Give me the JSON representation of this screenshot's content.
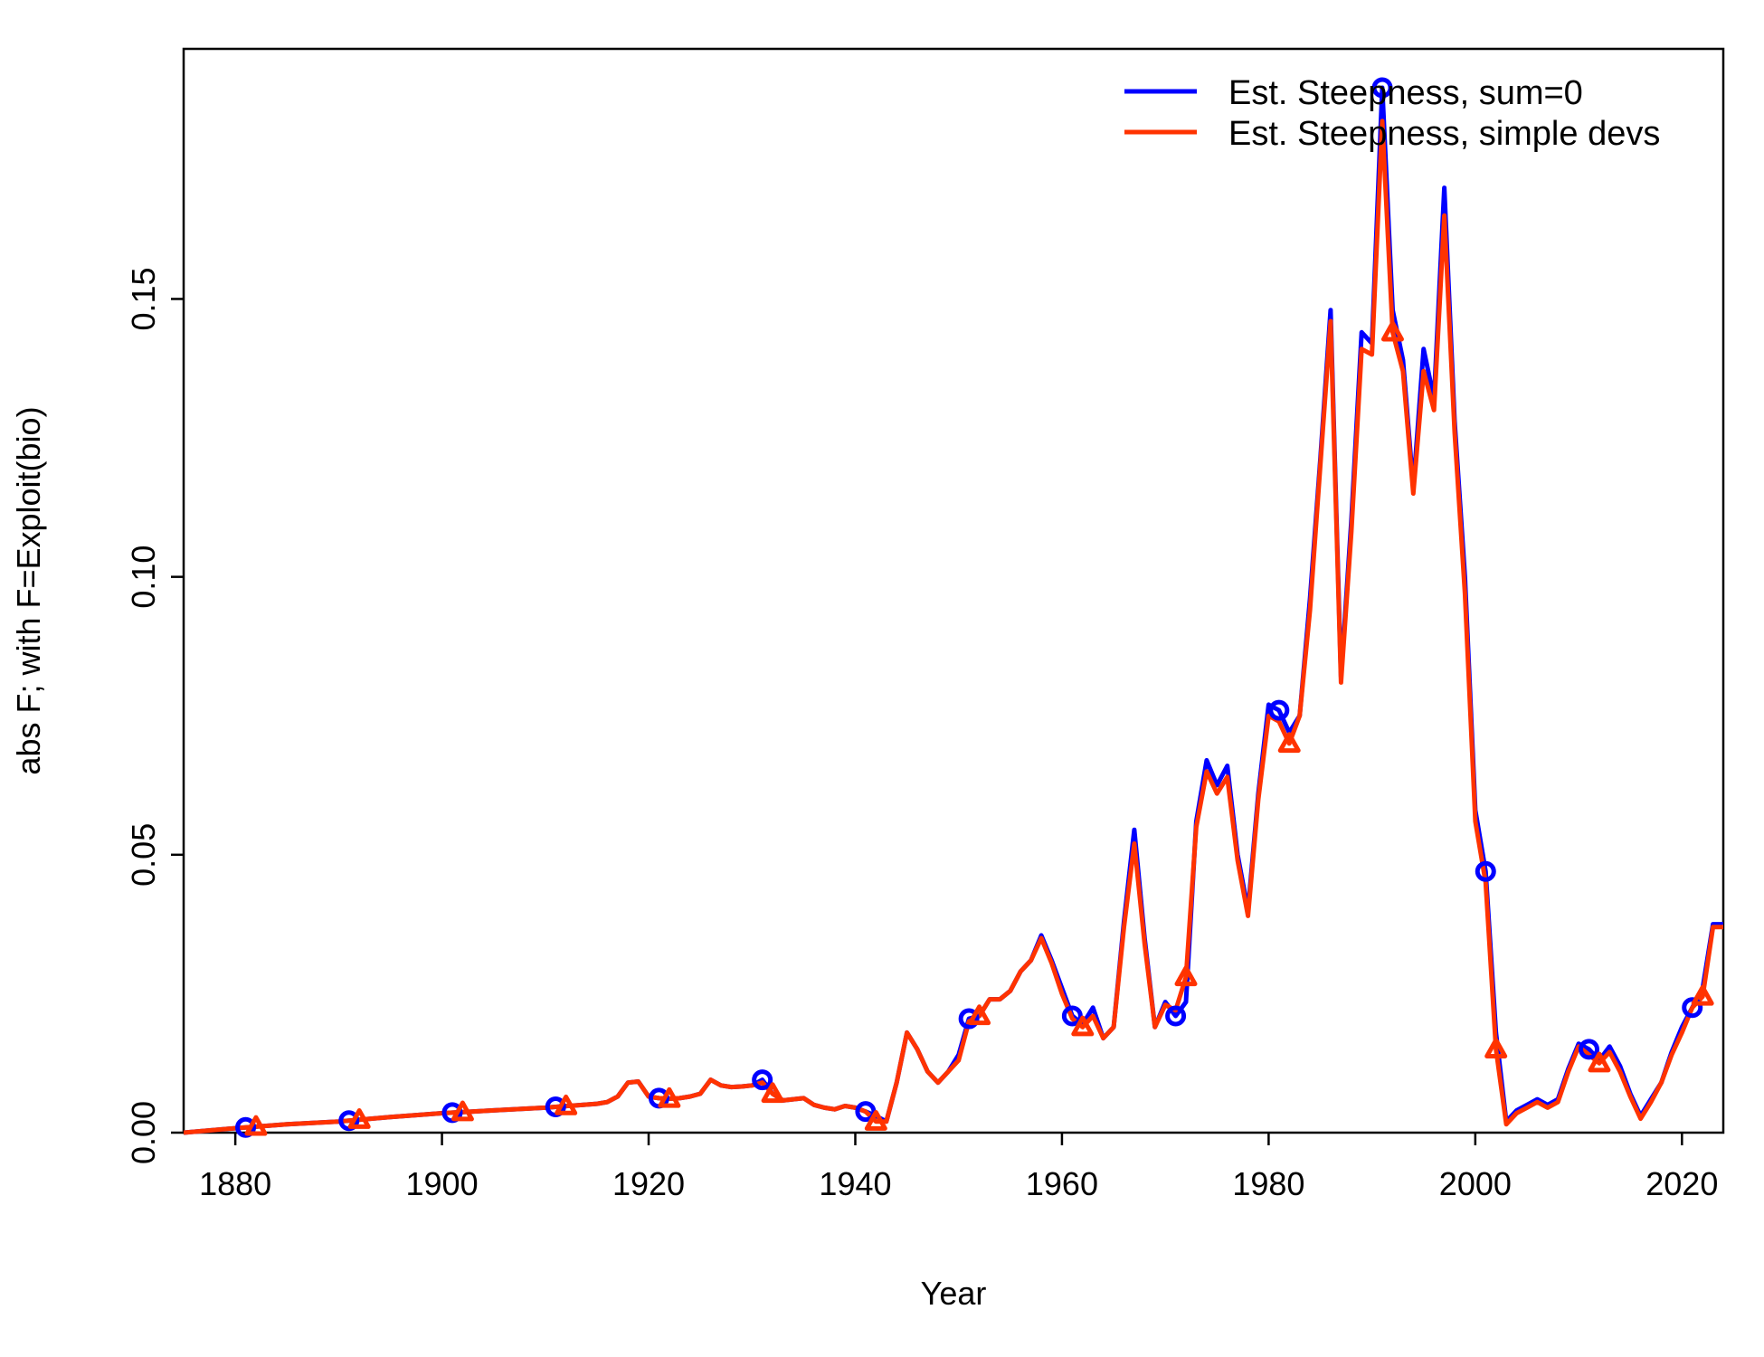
{
  "chart_data": {
    "type": "line",
    "title": "",
    "xlabel": "Year",
    "ylabel": "abs F; with F=Exploit(bio)",
    "xlim": [
      1875,
      2024
    ],
    "ylim": [
      0,
      0.195
    ],
    "x_ticks": [
      1880,
      1900,
      1920,
      1940,
      1960,
      1980,
      2000,
      2020
    ],
    "x_tick_labels": [
      "1880",
      "1900",
      "1920",
      "1940",
      "1960",
      "1980",
      "2000",
      "2020"
    ],
    "y_ticks": [
      0,
      0.05,
      0.1,
      0.15
    ],
    "y_tick_labels": [
      "0.00",
      "0.05",
      "0.10",
      "0.15"
    ],
    "grid": false,
    "legend_position": "top-right",
    "series": [
      {
        "name": "Est. Steepness, sum=0",
        "color": "#0000ff",
        "marker": "circle",
        "marker_x": [
          1881,
          1891,
          1901,
          1911,
          1921,
          1931,
          1941,
          1951,
          1961,
          1971,
          1981,
          1991,
          2001,
          2011,
          2021
        ],
        "x": [
          1875,
          1880,
          1885,
          1890,
          1895,
          1900,
          1905,
          1910,
          1915,
          1916,
          1917,
          1918,
          1919,
          1920,
          1921,
          1922,
          1923,
          1924,
          1925,
          1926,
          1927,
          1928,
          1929,
          1930,
          1931,
          1932,
          1933,
          1934,
          1935,
          1936,
          1937,
          1938,
          1939,
          1940,
          1941,
          1942,
          1943,
          1944,
          1945,
          1946,
          1947,
          1948,
          1949,
          1950,
          1951,
          1952,
          1953,
          1954,
          1955,
          1956,
          1957,
          1958,
          1959,
          1960,
          1961,
          1962,
          1963,
          1964,
          1965,
          1966,
          1967,
          1968,
          1969,
          1970,
          1971,
          1972,
          1973,
          1974,
          1975,
          1976,
          1977,
          1978,
          1979,
          1980,
          1981,
          1982,
          1983,
          1984,
          1985,
          1986,
          1987,
          1988,
          1989,
          1990,
          1991,
          1992,
          1993,
          1994,
          1995,
          1996,
          1997,
          1998,
          1999,
          2000,
          2001,
          2002,
          2003,
          2004,
          2005,
          2006,
          2007,
          2008,
          2009,
          2010,
          2011,
          2012,
          2013,
          2014,
          2015,
          2016,
          2017,
          2018,
          2019,
          2020,
          2021,
          2022,
          2023,
          2024
        ],
        "values": [
          0,
          0.0008,
          0.0015,
          0.002,
          0.0028,
          0.0035,
          0.004,
          0.0045,
          0.0052,
          0.0055,
          0.0065,
          0.009,
          0.0092,
          0.0065,
          0.0062,
          0.0061,
          0.0062,
          0.0065,
          0.007,
          0.0095,
          0.0085,
          0.0082,
          0.0083,
          0.0085,
          0.0095,
          0.007,
          0.0058,
          0.006,
          0.0062,
          0.005,
          0.0045,
          0.0042,
          0.0048,
          0.0045,
          0.0038,
          0.003,
          0.002,
          0.009,
          0.018,
          0.015,
          0.011,
          0.009,
          0.011,
          0.014,
          0.0205,
          0.021,
          0.024,
          0.024,
          0.0255,
          0.029,
          0.031,
          0.0355,
          0.031,
          0.026,
          0.021,
          0.0195,
          0.0225,
          0.017,
          0.019,
          0.038,
          0.0545,
          0.035,
          0.019,
          0.0235,
          0.021,
          0.0235,
          0.056,
          0.067,
          0.0625,
          0.066,
          0.05,
          0.04,
          0.061,
          0.077,
          0.076,
          0.072,
          0.075,
          0.096,
          0.121,
          0.148,
          0.082,
          0.11,
          0.144,
          0.142,
          0.188,
          0.148,
          0.139,
          0.116,
          0.141,
          0.132,
          0.17,
          0.128,
          0.1,
          0.058,
          0.047,
          0.018,
          0.002,
          0.004,
          0.005,
          0.006,
          0.005,
          0.006,
          0.0115,
          0.016,
          0.015,
          0.013,
          0.0155,
          0.012,
          0.007,
          0.003,
          0.006,
          0.009,
          0.0145,
          0.019,
          0.0225,
          0.026,
          0.0375,
          0.0375
        ]
      },
      {
        "name": "Est. Steepness, simple devs",
        "color": "#ff3300",
        "marker": "triangle",
        "marker_x": [
          1882,
          1892,
          1902,
          1912,
          1922,
          1932,
          1942,
          1952,
          1962,
          1972,
          1982,
          1992,
          2002,
          2012,
          2022
        ],
        "x": [
          1875,
          1880,
          1885,
          1890,
          1895,
          1900,
          1905,
          1910,
          1915,
          1916,
          1917,
          1918,
          1919,
          1920,
          1921,
          1922,
          1923,
          1924,
          1925,
          1926,
          1927,
          1928,
          1929,
          1930,
          1931,
          1932,
          1933,
          1934,
          1935,
          1936,
          1937,
          1938,
          1939,
          1940,
          1941,
          1942,
          1943,
          1944,
          1945,
          1946,
          1947,
          1948,
          1949,
          1950,
          1951,
          1952,
          1953,
          1954,
          1955,
          1956,
          1957,
          1958,
          1959,
          1960,
          1961,
          1962,
          1963,
          1964,
          1965,
          1966,
          1967,
          1968,
          1969,
          1970,
          1971,
          1972,
          1973,
          1974,
          1975,
          1976,
          1977,
          1978,
          1979,
          1980,
          1981,
          1982,
          1983,
          1984,
          1985,
          1986,
          1987,
          1988,
          1989,
          1990,
          1991,
          1992,
          1993,
          1994,
          1995,
          1996,
          1997,
          1998,
          1999,
          2000,
          2001,
          2002,
          2003,
          2004,
          2005,
          2006,
          2007,
          2008,
          2009,
          2010,
          2011,
          2012,
          2013,
          2014,
          2015,
          2016,
          2017,
          2018,
          2019,
          2020,
          2021,
          2022,
          2023,
          2024
        ],
        "values": [
          0,
          0.0008,
          0.0015,
          0.002,
          0.0028,
          0.0035,
          0.004,
          0.0045,
          0.0052,
          0.0055,
          0.0065,
          0.009,
          0.0092,
          0.0065,
          0.0062,
          0.0061,
          0.0062,
          0.0065,
          0.007,
          0.0095,
          0.0085,
          0.0082,
          0.0083,
          0.0085,
          0.009,
          0.007,
          0.0058,
          0.006,
          0.0062,
          0.005,
          0.0045,
          0.0042,
          0.0048,
          0.0045,
          0.0038,
          0.002,
          0.002,
          0.009,
          0.018,
          0.015,
          0.011,
          0.009,
          0.011,
          0.013,
          0.02,
          0.021,
          0.024,
          0.024,
          0.0255,
          0.029,
          0.031,
          0.035,
          0.0305,
          0.025,
          0.0205,
          0.019,
          0.021,
          0.017,
          0.019,
          0.037,
          0.052,
          0.034,
          0.019,
          0.023,
          0.022,
          0.028,
          0.055,
          0.065,
          0.061,
          0.064,
          0.049,
          0.039,
          0.06,
          0.075,
          0.074,
          0.07,
          0.075,
          0.094,
          0.12,
          0.146,
          0.081,
          0.108,
          0.141,
          0.14,
          0.182,
          0.144,
          0.137,
          0.115,
          0.137,
          0.13,
          0.165,
          0.126,
          0.097,
          0.056,
          0.045,
          0.015,
          0.0015,
          0.0035,
          0.0045,
          0.0055,
          0.0045,
          0.0055,
          0.011,
          0.0155,
          0.014,
          0.0125,
          0.0145,
          0.011,
          0.0065,
          0.0025,
          0.0055,
          0.009,
          0.014,
          0.018,
          0.0225,
          0.0245,
          0.037,
          0.037
        ]
      }
    ]
  }
}
